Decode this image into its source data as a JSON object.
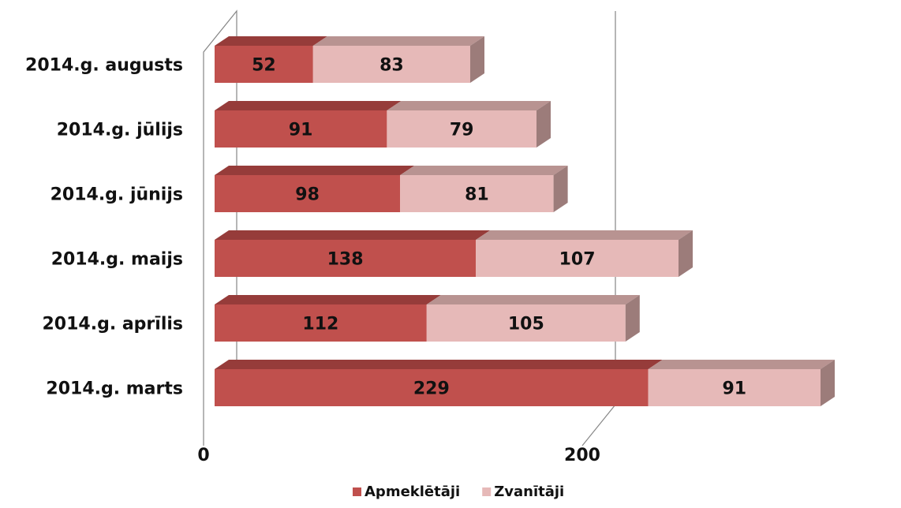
{
  "chart_data": {
    "type": "bar",
    "orientation": "horizontal",
    "stacked": true,
    "three_d": true,
    "title": "",
    "xlabel": "",
    "ylabel": "",
    "categories": [
      "2014.g. marts",
      "2014.g. aprīlis",
      "2014.g. maijs",
      "2014.g. jūnijs",
      "2014.g. jūlijs",
      "2014.g. augusts"
    ],
    "series": [
      {
        "name": "Apmeklētāji",
        "values": [
          229,
          112,
          138,
          98,
          91,
          52
        ],
        "color": "#C0504D",
        "top_color": "#963C3A",
        "side_color": "#7A302E"
      },
      {
        "name": "Zvanītāji",
        "values": [
          91,
          105,
          107,
          81,
          79,
          83
        ],
        "color": "#E6B9B8",
        "top_color": "#B89391",
        "side_color": "#9C7C7A"
      }
    ],
    "xlim": [
      0,
      400
    ],
    "xticks": [
      0,
      200,
      400
    ],
    "grid": true,
    "legend_position": "bottom"
  }
}
